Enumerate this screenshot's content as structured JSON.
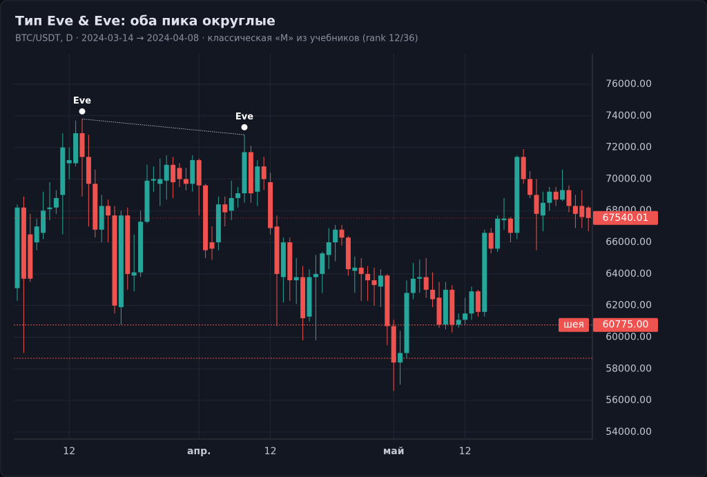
{
  "chart_data": {
    "type": "candlestick",
    "title": "Тип Eve & Eve: оба пика округлые",
    "subtitle": "BTC/USDT, D · 2024-03-14 → 2024-04-08 · классическая «M» из учебников (rank 12/36)",
    "categories": [
      null,
      null,
      null,
      null,
      null,
      null,
      null,
      null,
      "12",
      null,
      null,
      null,
      null,
      null,
      null,
      null,
      null,
      null,
      null,
      null,
      null,
      null,
      null,
      null,
      null,
      null,
      null,
      null,
      "апр.",
      null,
      null,
      null,
      null,
      null,
      null,
      null,
      null,
      null,
      null,
      "12",
      null,
      null,
      null,
      null,
      null,
      null,
      null,
      null,
      null,
      null,
      null,
      null,
      null,
      null,
      null,
      null,
      null,
      null,
      "май",
      null,
      null,
      null,
      null,
      null,
      null,
      null,
      null,
      null,
      null,
      "12",
      null,
      null,
      null,
      null,
      null,
      null,
      null,
      null,
      null,
      null,
      null,
      null,
      null,
      null,
      null,
      null,
      null,
      null,
      null
    ],
    "open": [
      63100,
      68200,
      66500,
      66000,
      66600,
      68100,
      68200,
      69000,
      71000,
      71000,
      72900,
      71400,
      69700,
      66800,
      68300,
      67700,
      61900,
      67700,
      63900,
      64100,
      67300,
      69900,
      69700,
      69900,
      70900,
      70700,
      70000,
      69700,
      71200,
      69600,
      66000,
      66000,
      68400,
      68000,
      68800,
      69100,
      71700,
      69200,
      70800,
      69800,
      67000,
      63800,
      66000,
      63600,
      63800,
      61300,
      63800,
      64000,
      65200,
      66000,
      66800,
      66300,
      64200,
      64400,
      64000,
      63600,
      63200,
      63900,
      60700,
      58400,
      59000,
      62800,
      63700,
      63800,
      63000,
      62500,
      60800,
      63000,
      60800,
      61100,
      61500,
      62900,
      61600,
      66600,
      65600,
      67400,
      67500,
      66600,
      71400,
      70000,
      69000,
      67700,
      68500,
      69200,
      68700,
      69300,
      68300,
      68300,
      68200
    ],
    "high": [
      68400,
      68900,
      67800,
      67500,
      69200,
      69800,
      69300,
      72900,
      72000,
      73700,
      73800,
      72800,
      70600,
      69000,
      68700,
      68300,
      68000,
      68200,
      66500,
      68000,
      70900,
      70800,
      71300,
      71500,
      71400,
      71000,
      70700,
      71500,
      71300,
      69700,
      67000,
      68900,
      68900,
      69900,
      69500,
      72800,
      72100,
      71200,
      71400,
      70400,
      67700,
      66300,
      66300,
      65000,
      64500,
      64300,
      65200,
      65400,
      66900,
      67100,
      67100,
      66400,
      65100,
      65000,
      64500,
      64400,
      64300,
      64000,
      61100,
      60400,
      63600,
      64700,
      64900,
      65000,
      64100,
      63500,
      63500,
      63300,
      61500,
      62500,
      63200,
      63000,
      66800,
      66900,
      67700,
      68800,
      67600,
      71500,
      71900,
      70500,
      70000,
      69200,
      69500,
      69500,
      70600,
      69600,
      69000,
      69300,
      68300
    ],
    "low": [
      62300,
      59000,
      63500,
      65500,
      66200,
      67400,
      67800,
      66500,
      70000,
      70800,
      68900,
      67000,
      66300,
      66000,
      66000,
      61500,
      60800,
      63000,
      62900,
      63800,
      67200,
      69200,
      68300,
      68700,
      68800,
      69500,
      69300,
      69200,
      67700,
      65000,
      64900,
      65500,
      67000,
      67400,
      68200,
      68500,
      68500,
      68300,
      69300,
      66500,
      60700,
      62200,
      62300,
      62100,
      59800,
      61000,
      59800,
      62800,
      64300,
      64800,
      65800,
      63900,
      62800,
      62300,
      62300,
      62000,
      61900,
      59500,
      56600,
      57000,
      58700,
      62400,
      62800,
      62500,
      61900,
      60600,
      60500,
      60300,
      60600,
      60800,
      61100,
      61300,
      61300,
      65300,
      65400,
      66800,
      66000,
      66200,
      69700,
      68800,
      65500,
      66700,
      68000,
      68300,
      68600,
      67900,
      66900,
      66900,
      66700
    ],
    "close": [
      68200,
      63700,
      63700,
      67000,
      68000,
      68200,
      68800,
      72000,
      71200,
      72900,
      71400,
      69700,
      66800,
      68300,
      67700,
      62000,
      67700,
      64000,
      64100,
      67300,
      69900,
      70000,
      70000,
      70900,
      69800,
      70000,
      69700,
      71200,
      69600,
      65500,
      65600,
      68400,
      67900,
      68800,
      69100,
      71700,
      69100,
      70800,
      70000,
      66900,
      64000,
      66000,
      63600,
      63800,
      61200,
      63800,
      64000,
      65300,
      66000,
      66800,
      66300,
      64300,
      64400,
      64000,
      63600,
      63300,
      63900,
      60700,
      58400,
      59000,
      62800,
      63700,
      63800,
      63000,
      62400,
      60800,
      63000,
      60800,
      61100,
      61500,
      62900,
      61600,
      66600,
      65600,
      67500,
      67500,
      66600,
      71400,
      70000,
      69000,
      67800,
      68500,
      69200,
      68700,
      69300,
      68300,
      67800,
      67600,
      67540.01
    ],
    "up_color": "#26a69a",
    "down_color": "#ef5350",
    "ylim": [
      53560,
      77920
    ],
    "yticks": [
      {
        "value": 54000,
        "label": "54000.00"
      },
      {
        "value": 56000,
        "label": "56000.00"
      },
      {
        "value": 58000,
        "label": "58000.00"
      },
      {
        "value": 60000,
        "label": "60000.00"
      },
      {
        "value": 62000,
        "label": "62000.00"
      },
      {
        "value": 64000,
        "label": "64000.00"
      },
      {
        "value": 66000,
        "label": "66000.00"
      },
      {
        "value": 68000,
        "label": "68000.00"
      },
      {
        "value": 70000,
        "label": "70000.00"
      },
      {
        "value": 72000,
        "label": "72000.00"
      },
      {
        "value": 74000,
        "label": "74000.00"
      },
      {
        "value": 76000,
        "label": "76000.00"
      }
    ],
    "grid": true,
    "peaks": [
      {
        "text": "Eve",
        "index": 10
      },
      {
        "text": "Eve",
        "index": 35
      }
    ],
    "levels": [
      {
        "name": "шея",
        "value": 60775,
        "label": "60775.00"
      },
      {
        "value": 58670
      }
    ],
    "last_price": 67540.01
  }
}
